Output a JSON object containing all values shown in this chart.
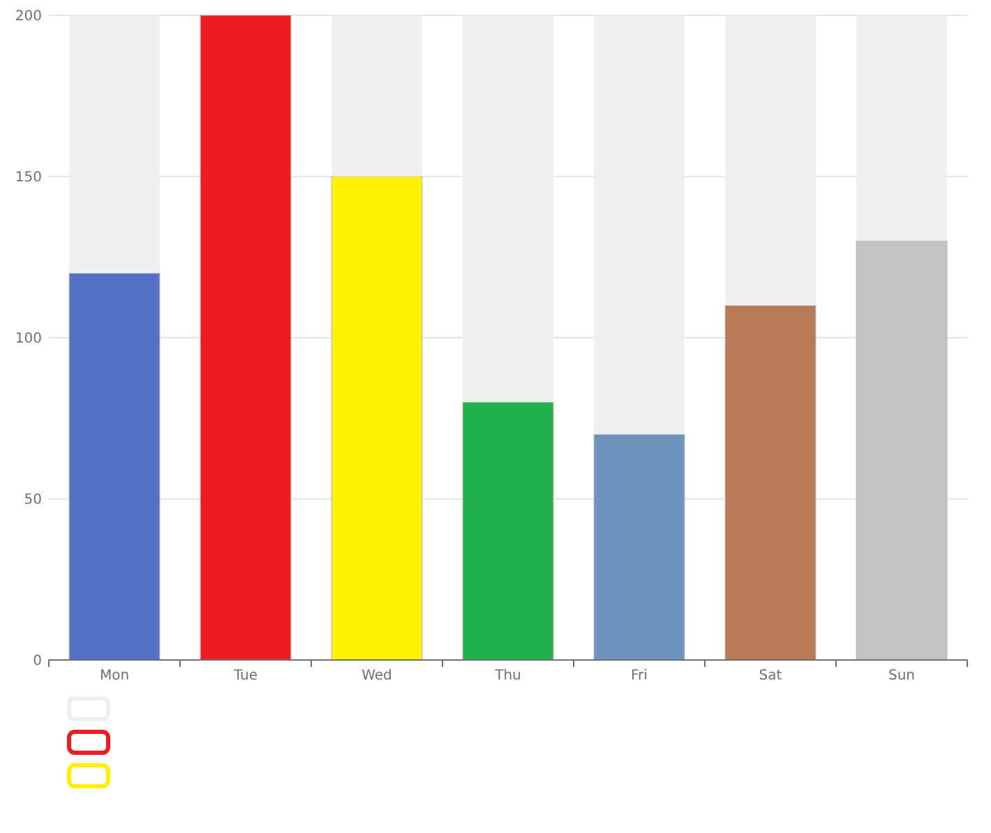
{
  "chart_data": {
    "type": "bar",
    "categories": [
      "Mon",
      "Tue",
      "Wed",
      "Thu",
      "Fri",
      "Sat",
      "Sun"
    ],
    "stacked": true,
    "series": [
      {
        "colors": [
          "#5470c6",
          "#ed1c24",
          "#fff200",
          "#22b14c",
          "#7092be",
          "#b97a57",
          "#c3c3c3"
        ],
        "values": [
          120,
          200,
          150,
          80,
          70,
          110,
          130
        ]
      },
      {
        "color": "#efefef",
        "values": [
          80,
          0,
          50,
          120,
          130,
          90,
          70
        ]
      }
    ],
    "ylim": [
      0,
      200
    ],
    "yticks": [
      0,
      50,
      100,
      150,
      200
    ],
    "grid": "y"
  }
}
